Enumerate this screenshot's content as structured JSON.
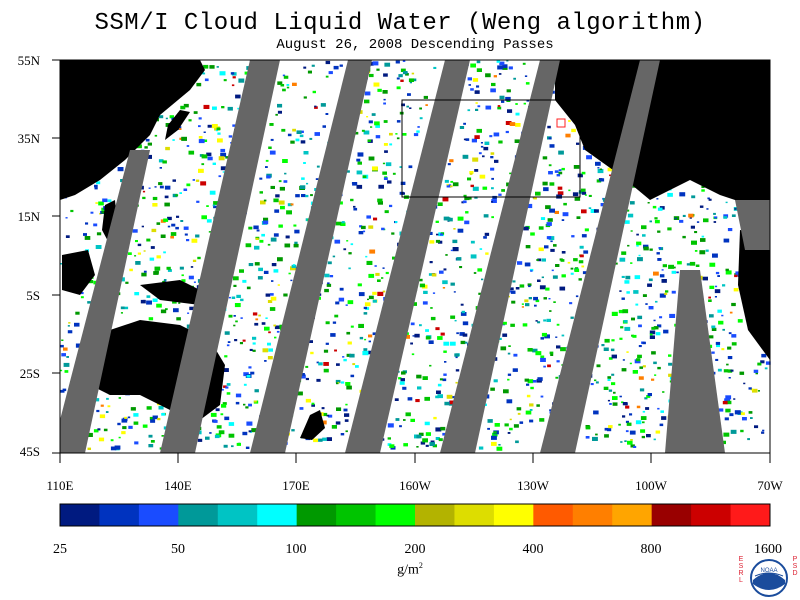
{
  "title": "SSM/I Cloud Liquid Water (Weng algorithm)",
  "subtitle": "August 26, 2008  Descending Passes",
  "lat_labels": [
    "55N",
    "35N",
    "15N",
    "5S",
    "25S",
    "45S"
  ],
  "lon_labels": [
    "110E",
    "140E",
    "170E",
    "160W",
    "130W",
    "100W",
    "70W"
  ],
  "colorbar": {
    "colors": [
      "#001a80",
      "#0033bf",
      "#1a4cff",
      "#009999",
      "#00c4c4",
      "#00ffff",
      "#009900",
      "#00c400",
      "#00ff00",
      "#b3b300",
      "#dddd00",
      "#ffff00",
      "#ff5a00",
      "#ff7f00",
      "#ffa500",
      "#990000",
      "#cc0000",
      "#ff1a1a"
    ],
    "tick_labels": [
      "25",
      "50",
      "100",
      "200",
      "400",
      "800",
      "1600"
    ],
    "units": "g/m",
    "units_sup": "2"
  },
  "logo": {
    "left_text": "ESRL",
    "right_text": "PSD",
    "center_text": "NOAA"
  },
  "map_colors": {
    "ocean": "#ffffff",
    "land": "#000000",
    "gap": "#666666"
  }
}
